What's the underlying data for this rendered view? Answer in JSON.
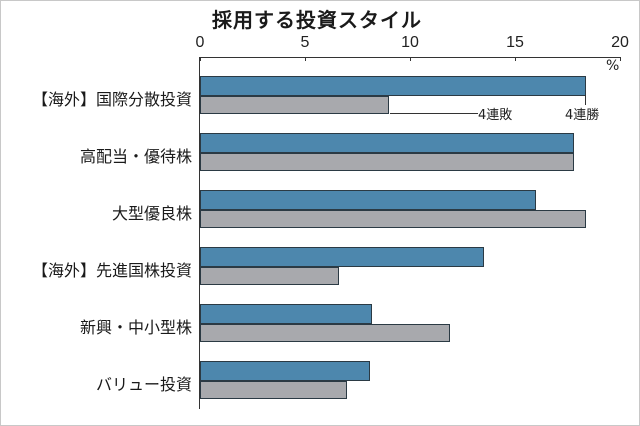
{
  "title": "採用する投資スタイル",
  "axis": {
    "ticks": [
      "0",
      "5",
      "10",
      "15",
      "20"
    ],
    "unit": "%"
  },
  "annotations": {
    "blue_label": "4連勝",
    "gray_label": "4連敗"
  },
  "colors": {
    "blue": "#4d87ad",
    "gray": "#a8a9ad"
  },
  "chart_data": {
    "type": "bar",
    "orientation": "horizontal",
    "title": "採用する投資スタイル",
    "xlabel": "%",
    "ylabel": "",
    "xlim": [
      0,
      20
    ],
    "x_ticks": [
      0,
      5,
      10,
      15,
      20
    ],
    "grid": false,
    "categories": [
      "【海外】国際分散投資",
      "高配当・優待株",
      "大型優良株",
      "【海外】先進国株投資",
      "新興・中小型株",
      "バリュー投資"
    ],
    "series": [
      {
        "name": "4連勝",
        "color": "#4d87ad",
        "values": [
          18.4,
          17.8,
          16.0,
          13.5,
          8.2,
          8.1
        ]
      },
      {
        "name": "4連敗",
        "color": "#a8a9ad",
        "values": [
          9.0,
          17.8,
          18.4,
          6.6,
          11.9,
          7.0
        ]
      }
    ],
    "legend": "inline annotations on first category (4連勝 / 4連敗)"
  }
}
